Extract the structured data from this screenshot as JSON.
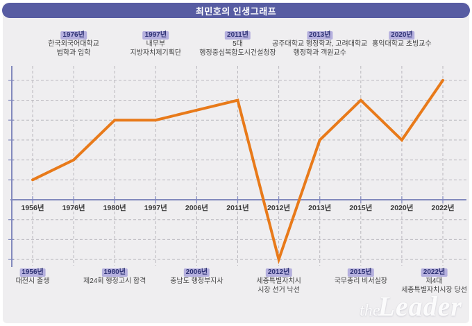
{
  "title": "최민호의 인생그래프",
  "colors": {
    "panel": "#efeef0",
    "title_bar": "#575ca2",
    "badge_bg": "#b5b0de",
    "badge_text": "#2f3375",
    "axis": "#8289bd",
    "grid": "#b9b7bd",
    "text": "#3f3f3f",
    "line": "#e87a1a"
  },
  "top_annotations": [
    {
      "year": "1976년",
      "lines": [
        "한국외국어대학교",
        "법학과 입학"
      ]
    },
    {
      "year": "1997년",
      "lines": [
        "내무부",
        "지방자치제기획단"
      ]
    },
    {
      "year": "2011년",
      "lines": [
        "5대",
        "행정중심복합도시건설청장"
      ]
    },
    {
      "year": "2013년",
      "lines": [
        "공주대학교 행정학과, 고려대학교",
        "행정학과 객원교수"
      ]
    },
    {
      "year": "2020년",
      "lines": [
        "홍익대학교 초빙교수"
      ]
    }
  ],
  "bottom_annotations": [
    {
      "year": "1956년",
      "lines": [
        "대전시 출생"
      ]
    },
    {
      "year": "1980년",
      "lines": [
        "제24회 행정고시 합격"
      ]
    },
    {
      "year": "2006년",
      "lines": [
        "충남도 행정부지사"
      ]
    },
    {
      "year": "2012년",
      "lines": [
        "세종특별자치시",
        "시장 선거 낙선"
      ]
    },
    {
      "year": "2015년",
      "lines": [
        "국무총리 비서실장"
      ]
    },
    {
      "year": "2022년",
      "lines": [
        "제4대",
        "세종특별자치시장 당선"
      ]
    }
  ],
  "watermark": {
    "prefix": "the",
    "name": "Leader"
  },
  "chart_data": {
    "type": "line",
    "title": "최민호의 인생그래프",
    "x": [
      "1956년",
      "1976년",
      "1980년",
      "1997년",
      "2006년",
      "2011년",
      "2012년",
      "2013년",
      "2015년",
      "2020년",
      "2022년"
    ],
    "values": [
      1,
      2,
      4,
      4,
      4.5,
      5,
      -3,
      3,
      5,
      3,
      6
    ],
    "xlabel": "",
    "ylabel": "",
    "ylim": [
      -3,
      6
    ],
    "grid": true,
    "grid_style": "dashed",
    "legend": "none",
    "line_color": "#e87a1a"
  }
}
